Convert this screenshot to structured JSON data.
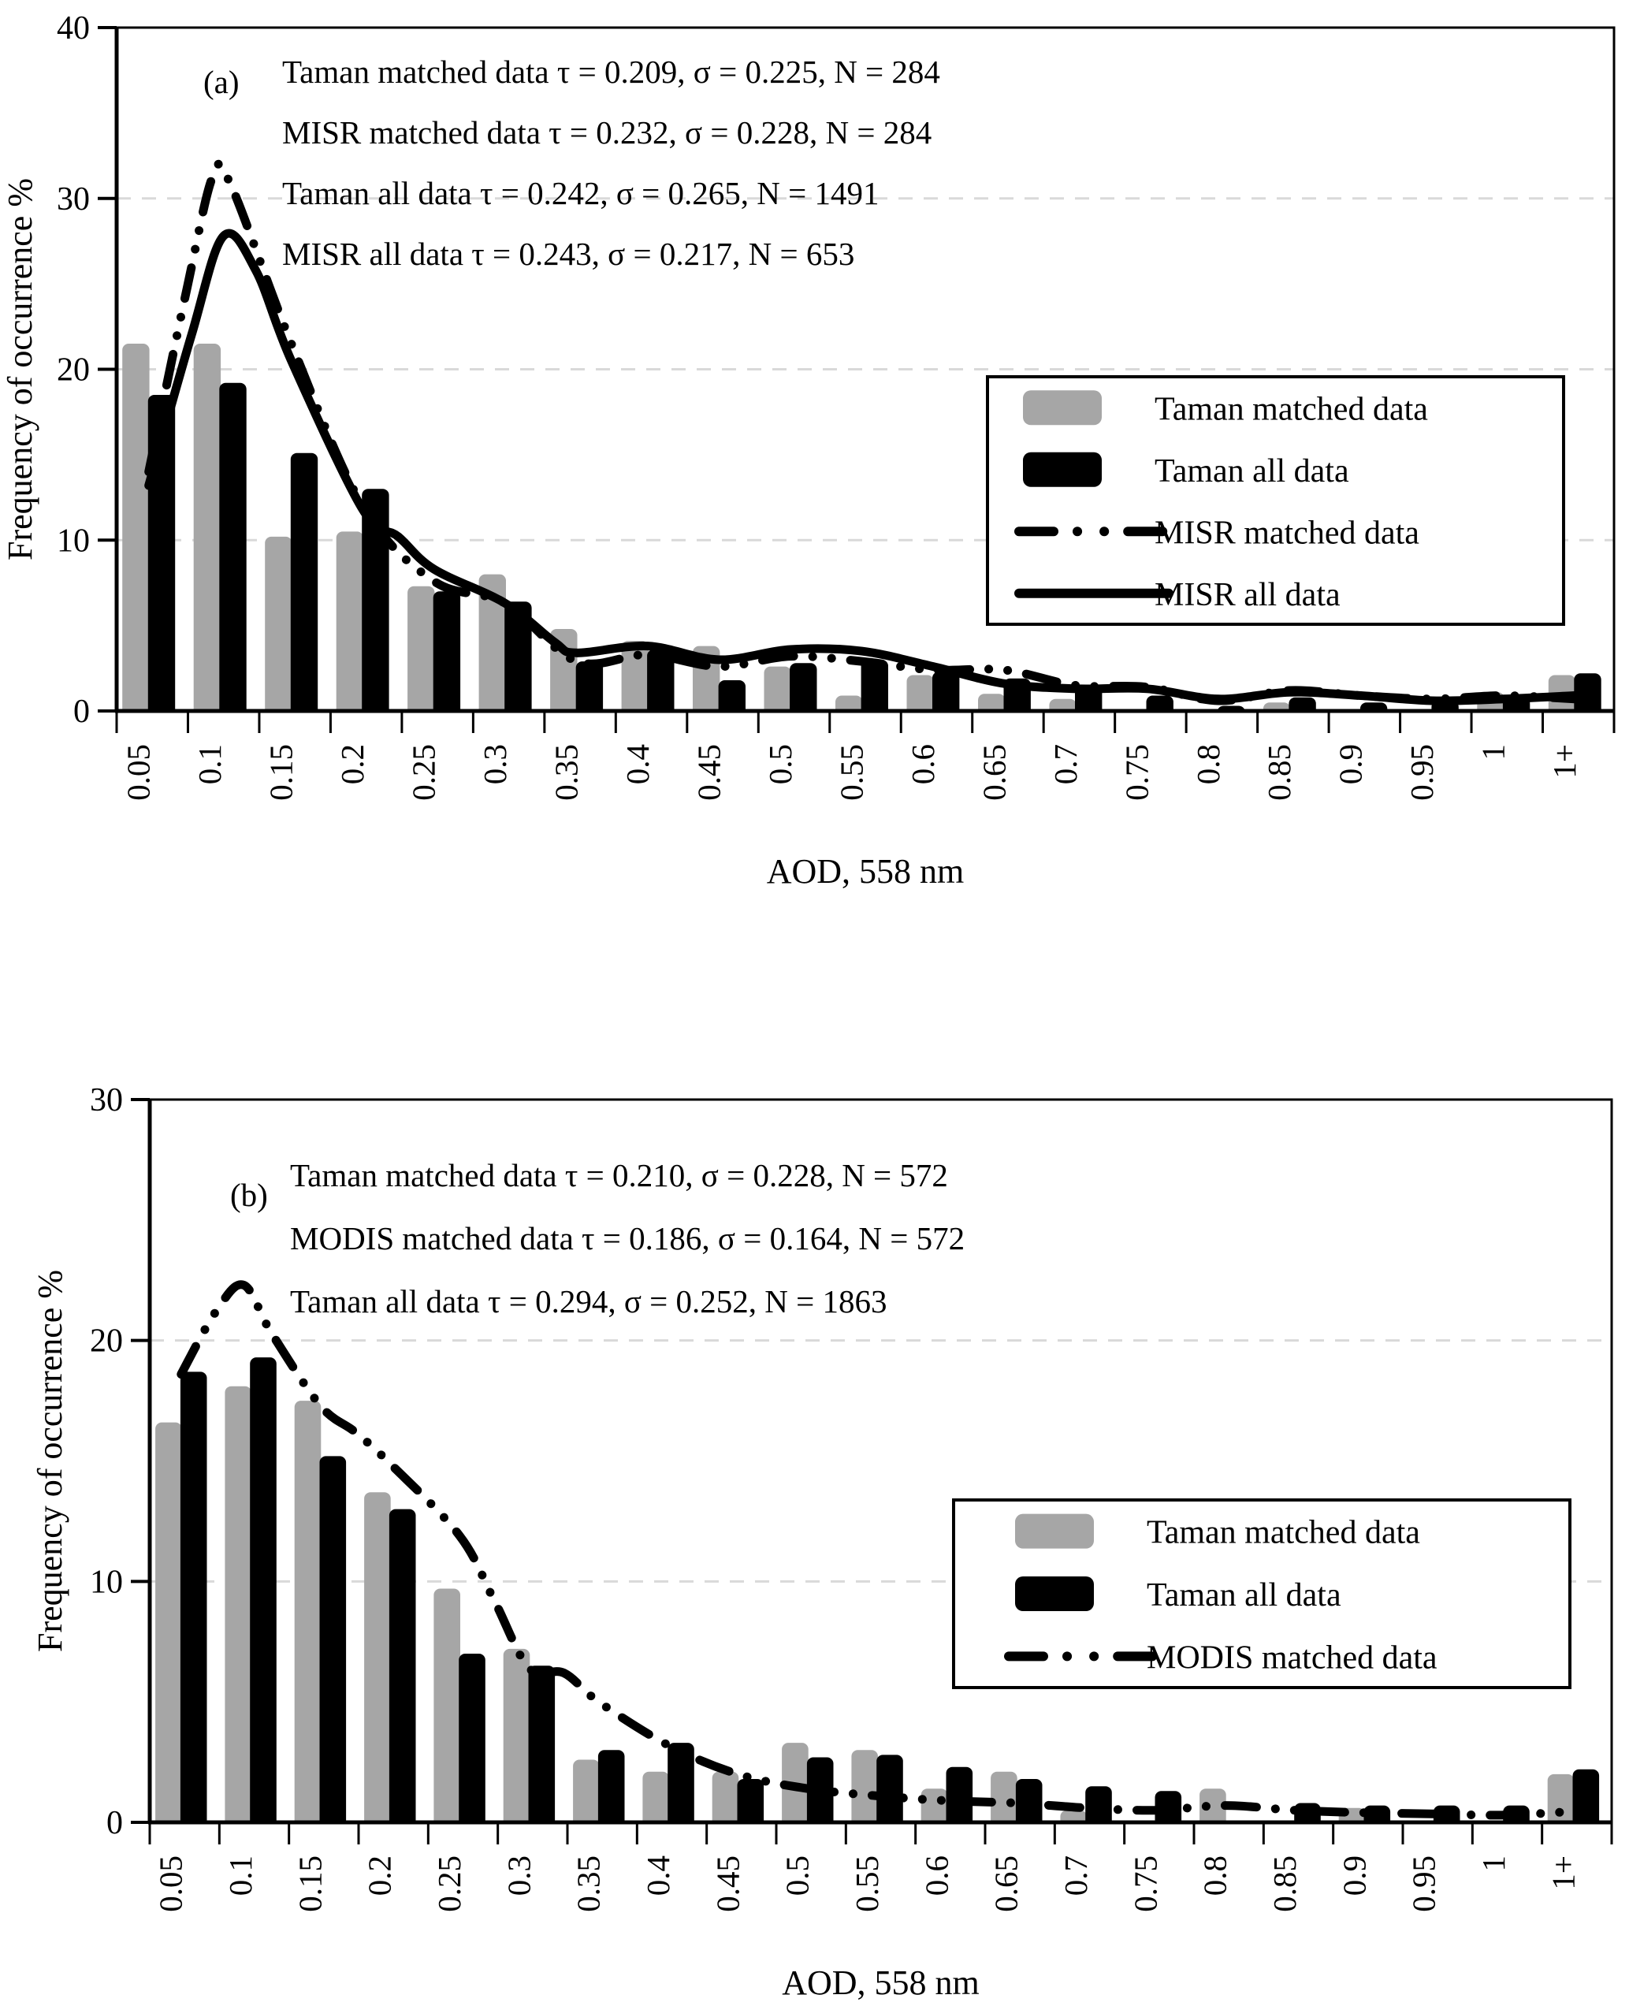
{
  "figure": {
    "background": "#ffffff",
    "bar_gray": "#a6a6a6",
    "bar_black": "#000000",
    "gridline_color": "#d9d9d9",
    "axis_color": "#000000"
  },
  "chart_data": [
    {
      "id": "a",
      "type": "bar",
      "panel_label": "(a)",
      "title": "",
      "xlabel": "AOD, 558 nm",
      "ylabel": "Frequency of occurrence %",
      "ylim": [
        0,
        40
      ],
      "yticks": [
        "0",
        "10",
        "20",
        "30",
        "40"
      ],
      "grid": "horizontal-dashed",
      "legend_position": "right",
      "categories": [
        "0.05",
        "0.1",
        "0.15",
        "0.2",
        "0.25",
        "0.3",
        "0.35",
        "0.4",
        "0.45",
        "0.5",
        "0.55",
        "0.6",
        "0.65",
        "0.7",
        "0.75",
        "0.8",
        "0.85",
        "0.9",
        "0.95",
        "1",
        "1+"
      ],
      "annotation_lines": [
        "Taman matched data τ = 0.209, σ = 0.225, N = 284",
        "MISR matched data τ = 0.232, σ = 0.228, N = 284",
        "Taman all data τ = 0.242, σ = 0.265, N = 1491",
        "MISR all data τ = 0.243, σ = 0.217, N = 653"
      ],
      "series": [
        {
          "name": "Taman matched data",
          "kind": "bar",
          "color": "#a6a6a6",
          "values": [
            21.5,
            21.5,
            10.2,
            10.5,
            7.3,
            8.0,
            4.8,
            4.1,
            3.8,
            2.6,
            0.9,
            2.1,
            1.0,
            0.7,
            0,
            0,
            0.5,
            0,
            0,
            1.1,
            2.1
          ]
        },
        {
          "name": "Taman all data",
          "kind": "bar",
          "color": "#000000",
          "values": [
            18.5,
            19.2,
            15.1,
            13.0,
            7.0,
            6.4,
            2.9,
            3.6,
            1.8,
            2.8,
            3.0,
            2.3,
            1.9,
            1.4,
            0.9,
            0.3,
            0.8,
            0.5,
            0.6,
            0.8,
            2.2
          ]
        },
        {
          "name": "MISR matched data",
          "kind": "line",
          "style": "dashdot",
          "color": "#000000",
          "points": [
            [
              0,
              14.0
            ],
            [
              0.55,
              25.0
            ],
            [
              0.9,
              31.3
            ],
            [
              1.15,
              30.8
            ],
            [
              2,
              21.5
            ],
            [
              3,
              12.0
            ],
            [
              4,
              7.6
            ],
            [
              5,
              6.3
            ],
            [
              6,
              2.9
            ],
            [
              7,
              3.3
            ],
            [
              8,
              2.6
            ],
            [
              9,
              3.2
            ],
            [
              10,
              2.9
            ],
            [
              11,
              2.4
            ],
            [
              12,
              2.4
            ],
            [
              13,
              1.5
            ],
            [
              14,
              1.4
            ],
            [
              15,
              0.6
            ],
            [
              16,
              1.2
            ],
            [
              17,
              0.9
            ],
            [
              18,
              0.7
            ],
            [
              19,
              0.9
            ],
            [
              20,
              0.7
            ]
          ]
        },
        {
          "name": "MISR all data",
          "kind": "line",
          "style": "solid",
          "color": "#000000",
          "points": [
            [
              0,
              13.2
            ],
            [
              0.6,
              22.0
            ],
            [
              1.05,
              27.8
            ],
            [
              1.5,
              25.8
            ],
            [
              2,
              20.5
            ],
            [
              3,
              11.8
            ],
            [
              3.5,
              10.2
            ],
            [
              4,
              8.3
            ],
            [
              5,
              6.3
            ],
            [
              5.7,
              4.0
            ],
            [
              6,
              3.4
            ],
            [
              7,
              3.8
            ],
            [
              8,
              3.0
            ],
            [
              9,
              3.6
            ],
            [
              10,
              3.5
            ],
            [
              11,
              2.6
            ],
            [
              12,
              1.6
            ],
            [
              13,
              1.3
            ],
            [
              14,
              1.3
            ],
            [
              15,
              0.7
            ],
            [
              16,
              1.1
            ],
            [
              17,
              0.9
            ],
            [
              18,
              0.6
            ],
            [
              19,
              0.7
            ],
            [
              20,
              0.9
            ]
          ]
        }
      ]
    },
    {
      "id": "b",
      "type": "bar",
      "panel_label": "(b)",
      "title": "",
      "xlabel": "AOD, 558 nm",
      "ylabel": "Frequency of occurrence %",
      "ylim": [
        0,
        30
      ],
      "yticks": [
        "0",
        "10",
        "20",
        "30"
      ],
      "grid": "horizontal-dashed",
      "legend_position": "right",
      "categories": [
        "0.05",
        "0.1",
        "0.15",
        "0.2",
        "0.25",
        "0.3",
        "0.35",
        "0.4",
        "0.45",
        "0.5",
        "0.55",
        "0.6",
        "0.65",
        "0.7",
        "0.75",
        "0.8",
        "0.85",
        "0.9",
        "0.95",
        "1",
        "1+"
      ],
      "annotation_lines": [
        "Taman matched data τ = 0.210, σ = 0.228, N = 572",
        "MODIS matched data τ = 0.186, σ = 0.164, N = 572",
        "Taman all data τ = 0.294, σ = 0.252, N = 1863"
      ],
      "series": [
        {
          "name": "Taman matched data",
          "kind": "bar",
          "color": "#a6a6a6",
          "values": [
            16.6,
            18.1,
            17.5,
            13.7,
            9.7,
            7.2,
            2.6,
            2.1,
            2.1,
            3.3,
            3.0,
            1.4,
            2.1,
            0.5,
            0,
            1.4,
            0,
            0.6,
            0,
            0,
            2.0
          ]
        },
        {
          "name": "Taman all data",
          "kind": "bar",
          "color": "#000000",
          "values": [
            18.7,
            19.3,
            15.2,
            13.0,
            7.0,
            6.5,
            3.0,
            3.3,
            1.8,
            2.7,
            2.8,
            2.3,
            1.8,
            1.5,
            1.3,
            0,
            0.8,
            0.7,
            0.7,
            0.7,
            2.2
          ]
        },
        {
          "name": "MODIS matched data",
          "kind": "line",
          "style": "dashdot",
          "color": "#000000",
          "points": [
            [
              0,
              18.6
            ],
            [
              0.5,
              21.2
            ],
            [
              0.9,
              22.3
            ],
            [
              1.3,
              20.3
            ],
            [
              2,
              17.3
            ],
            [
              2.5,
              16.2
            ],
            [
              3,
              14.9
            ],
            [
              4,
              11.9
            ],
            [
              4.5,
              9.2
            ],
            [
              5,
              6.4
            ],
            [
              5.5,
              6.2
            ],
            [
              6,
              5.0
            ],
            [
              7,
              3.2
            ],
            [
              8,
              2.0
            ],
            [
              9,
              1.4
            ],
            [
              10,
              1.1
            ],
            [
              11,
              0.9
            ],
            [
              12,
              0.8
            ],
            [
              13,
              0.6
            ],
            [
              14,
              0.5
            ],
            [
              15,
              0.7
            ],
            [
              16,
              0.5
            ],
            [
              17,
              0.4
            ],
            [
              18,
              0.35
            ],
            [
              19,
              0.3
            ],
            [
              20,
              0.45
            ]
          ]
        }
      ]
    }
  ]
}
